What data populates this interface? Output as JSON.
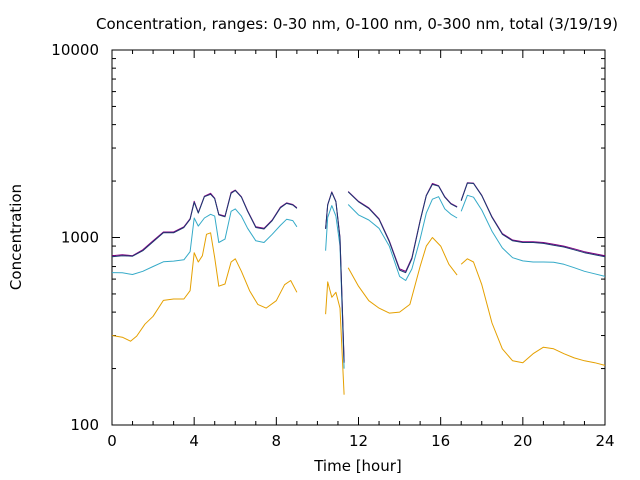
{
  "chart_data": {
    "type": "line",
    "title": "Concentration, ranges: 0-30 nm, 0-100 nm, 0-300 nm, total (3/19/19)",
    "xlabel": "Time [hour]",
    "ylabel": "Concentration",
    "xlim": [
      0,
      24
    ],
    "ylim": [
      100,
      10000
    ],
    "yscale": "log",
    "grid": false,
    "xticks": [
      0,
      4,
      8,
      12,
      16,
      20,
      24
    ],
    "yticks": [
      100,
      1000,
      10000
    ],
    "xtick_labels": [
      "0",
      "4",
      "8",
      "12",
      "16",
      "20",
      "24"
    ],
    "ytick_labels": [
      "100",
      "1000",
      "10000"
    ],
    "series": [
      {
        "color": "#e5a000",
        "segments": [
          [
            [
              0,
              300
            ],
            [
              0.5,
              294
            ],
            [
              0.9,
              280
            ],
            [
              1.2,
              298
            ],
            [
              1.6,
              345
            ],
            [
              2,
              380
            ],
            [
              2.5,
              462
            ],
            [
              3,
              470
            ],
            [
              3.5,
              470
            ],
            [
              3.8,
              520
            ],
            [
              4.0,
              830
            ],
            [
              4.2,
              740
            ],
            [
              4.4,
              800
            ],
            [
              4.6,
              1040
            ],
            [
              4.8,
              1060
            ],
            [
              5.0,
              780
            ],
            [
              5.2,
              550
            ],
            [
              5.5,
              565
            ],
            [
              5.8,
              740
            ],
            [
              6.0,
              770
            ],
            [
              6.3,
              660
            ],
            [
              6.7,
              520
            ],
            [
              7.1,
              440
            ],
            [
              7.5,
              420
            ],
            [
              8.0,
              460
            ],
            [
              8.4,
              560
            ],
            [
              8.7,
              590
            ],
            [
              9.0,
              510
            ]
          ],
          [
            [
              10.4,
              390
            ],
            [
              10.5,
              580
            ],
            [
              10.7,
              480
            ],
            [
              10.9,
              510
            ],
            [
              11.1,
              420
            ],
            [
              11.3,
              145
            ]
          ],
          [
            [
              11.5,
              690
            ],
            [
              12,
              550
            ],
            [
              12.5,
              460
            ],
            [
              13,
              420
            ],
            [
              13.5,
              395
            ],
            [
              14,
              400
            ],
            [
              14.5,
              440
            ],
            [
              15,
              700
            ],
            [
              15.3,
              900
            ],
            [
              15.6,
              1000
            ],
            [
              16,
              900
            ],
            [
              16.4,
              720
            ],
            [
              16.8,
              630
            ]
          ],
          [
            [
              17.0,
              720
            ],
            [
              17.3,
              770
            ],
            [
              17.6,
              740
            ],
            [
              18,
              560
            ],
            [
              18.5,
              350
            ],
            [
              19,
              255
            ],
            [
              19.5,
              220
            ],
            [
              20,
              215
            ],
            [
              20.5,
              240
            ],
            [
              21,
              260
            ],
            [
              21.5,
              255
            ],
            [
              22,
              240
            ],
            [
              22.5,
              228
            ],
            [
              23,
              220
            ],
            [
              23.5,
              215
            ],
            [
              24,
              208
            ]
          ]
        ]
      },
      {
        "color": "#35aac8",
        "segments": [
          [
            [
              0,
              650
            ],
            [
              0.5,
              648
            ],
            [
              1,
              635
            ],
            [
              1.5,
              660
            ],
            [
              2,
              700
            ],
            [
              2.5,
              742
            ],
            [
              3,
              748
            ],
            [
              3.5,
              760
            ],
            [
              3.8,
              840
            ],
            [
              4.0,
              1270
            ],
            [
              4.2,
              1150
            ],
            [
              4.5,
              1270
            ],
            [
              4.8,
              1330
            ],
            [
              5.0,
              1300
            ],
            [
              5.2,
              940
            ],
            [
              5.5,
              980
            ],
            [
              5.8,
              1380
            ],
            [
              6.0,
              1420
            ],
            [
              6.3,
              1300
            ],
            [
              6.6,
              1120
            ],
            [
              7.0,
              960
            ],
            [
              7.4,
              940
            ],
            [
              7.8,
              1040
            ],
            [
              8.2,
              1160
            ],
            [
              8.5,
              1250
            ],
            [
              8.8,
              1230
            ],
            [
              9.0,
              1140
            ]
          ],
          [
            [
              10.4,
              850
            ],
            [
              10.5,
              1280
            ],
            [
              10.7,
              1480
            ],
            [
              10.9,
              1300
            ],
            [
              11.1,
              900
            ],
            [
              11.3,
              200
            ]
          ],
          [
            [
              11.5,
              1500
            ],
            [
              12,
              1320
            ],
            [
              12.5,
              1240
            ],
            [
              13,
              1120
            ],
            [
              13.5,
              900
            ],
            [
              14,
              620
            ],
            [
              14.3,
              590
            ],
            [
              14.6,
              680
            ],
            [
              15,
              980
            ],
            [
              15.3,
              1350
            ],
            [
              15.6,
              1600
            ],
            [
              15.9,
              1650
            ],
            [
              16.2,
              1420
            ],
            [
              16.5,
              1330
            ],
            [
              16.8,
              1270
            ]
          ],
          [
            [
              17.0,
              1380
            ],
            [
              17.3,
              1680
            ],
            [
              17.6,
              1640
            ],
            [
              18,
              1400
            ],
            [
              18.5,
              1080
            ],
            [
              19,
              880
            ],
            [
              19.5,
              780
            ],
            [
              20,
              750
            ],
            [
              20.5,
              740
            ],
            [
              21,
              740
            ],
            [
              21.5,
              738
            ],
            [
              22,
              720
            ],
            [
              22.5,
              690
            ],
            [
              23,
              660
            ],
            [
              23.5,
              640
            ],
            [
              24,
              620
            ]
          ]
        ]
      },
      {
        "color": "#800080",
        "segments": [
          [
            [
              0,
              800
            ],
            [
              0.5,
              810
            ],
            [
              1,
              800
            ],
            [
              1.5,
              860
            ],
            [
              2,
              960
            ],
            [
              2.5,
              1070
            ],
            [
              3,
              1070
            ],
            [
              3.5,
              1140
            ],
            [
              3.8,
              1260
            ],
            [
              4.0,
              1560
            ],
            [
              4.2,
              1360
            ],
            [
              4.5,
              1660
            ],
            [
              4.8,
              1720
            ],
            [
              5.0,
              1620
            ],
            [
              5.2,
              1330
            ],
            [
              5.5,
              1300
            ],
            [
              5.8,
              1740
            ],
            [
              6.0,
              1790
            ],
            [
              6.3,
              1650
            ],
            [
              6.6,
              1390
            ],
            [
              7.0,
              1140
            ],
            [
              7.4,
              1120
            ],
            [
              7.8,
              1240
            ],
            [
              8.2,
              1450
            ],
            [
              8.5,
              1530
            ],
            [
              8.8,
              1500
            ],
            [
              9.0,
              1440
            ]
          ],
          [
            [
              10.4,
              1120
            ],
            [
              10.5,
              1500
            ],
            [
              10.7,
              1750
            ],
            [
              10.9,
              1560
            ],
            [
              11.1,
              1000
            ],
            [
              11.3,
              220
            ]
          ],
          [
            [
              11.5,
              1760
            ],
            [
              12,
              1560
            ],
            [
              12.5,
              1440
            ],
            [
              13,
              1260
            ],
            [
              13.5,
              960
            ],
            [
              14,
              680
            ],
            [
              14.3,
              660
            ],
            [
              14.6,
              780
            ],
            [
              15,
              1230
            ],
            [
              15.3,
              1680
            ],
            [
              15.6,
              1940
            ],
            [
              15.9,
              1890
            ],
            [
              16.2,
              1650
            ],
            [
              16.5,
              1520
            ],
            [
              16.8,
              1460
            ]
          ],
          [
            [
              17.0,
              1580
            ],
            [
              17.3,
              1960
            ],
            [
              17.6,
              1950
            ],
            [
              18,
              1680
            ],
            [
              18.5,
              1290
            ],
            [
              19,
              1050
            ],
            [
              19.5,
              970
            ],
            [
              20,
              950
            ],
            [
              20.5,
              950
            ],
            [
              21,
              940
            ],
            [
              21.5,
              920
            ],
            [
              22,
              900
            ],
            [
              22.5,
              870
            ],
            [
              23,
              840
            ],
            [
              23.5,
              820
            ],
            [
              24,
              800
            ]
          ]
        ]
      },
      {
        "color": "#1a3a70",
        "segments": [
          [
            [
              0,
              790
            ],
            [
              0.5,
              800
            ],
            [
              1,
              795
            ],
            [
              1.5,
              850
            ],
            [
              2,
              950
            ],
            [
              2.5,
              1060
            ],
            [
              3,
              1060
            ],
            [
              3.5,
              1130
            ],
            [
              3.8,
              1250
            ],
            [
              4.0,
              1540
            ],
            [
              4.2,
              1350
            ],
            [
              4.5,
              1650
            ],
            [
              4.8,
              1700
            ],
            [
              5.0,
              1610
            ],
            [
              5.2,
              1320
            ],
            [
              5.5,
              1290
            ],
            [
              5.8,
              1720
            ],
            [
              6.0,
              1780
            ],
            [
              6.3,
              1640
            ],
            [
              6.6,
              1380
            ],
            [
              7.0,
              1130
            ],
            [
              7.4,
              1110
            ],
            [
              7.8,
              1230
            ],
            [
              8.2,
              1440
            ],
            [
              8.5,
              1520
            ],
            [
              8.8,
              1490
            ],
            [
              9.0,
              1430
            ]
          ],
          [
            [
              10.4,
              1110
            ],
            [
              10.5,
              1490
            ],
            [
              10.7,
              1740
            ],
            [
              10.9,
              1550
            ],
            [
              11.1,
              990
            ],
            [
              11.3,
              215
            ]
          ],
          [
            [
              11.5,
              1750
            ],
            [
              12,
              1550
            ],
            [
              12.5,
              1430
            ],
            [
              13,
              1250
            ],
            [
              13.5,
              950
            ],
            [
              14,
              670
            ],
            [
              14.3,
              650
            ],
            [
              14.6,
              770
            ],
            [
              15,
              1220
            ],
            [
              15.3,
              1670
            ],
            [
              15.6,
              1920
            ],
            [
              15.9,
              1880
            ],
            [
              16.2,
              1640
            ],
            [
              16.5,
              1510
            ],
            [
              16.8,
              1450
            ]
          ],
          [
            [
              17.0,
              1570
            ],
            [
              17.3,
              1950
            ],
            [
              17.6,
              1940
            ],
            [
              18,
              1670
            ],
            [
              18.5,
              1280
            ],
            [
              19,
              1040
            ],
            [
              19.5,
              960
            ],
            [
              20,
              940
            ],
            [
              20.5,
              940
            ],
            [
              21,
              930
            ],
            [
              21.5,
              910
            ],
            [
              22,
              890
            ],
            [
              22.5,
              860
            ],
            [
              23,
              830
            ],
            [
              23.5,
              810
            ],
            [
              24,
              790
            ]
          ]
        ]
      }
    ]
  }
}
